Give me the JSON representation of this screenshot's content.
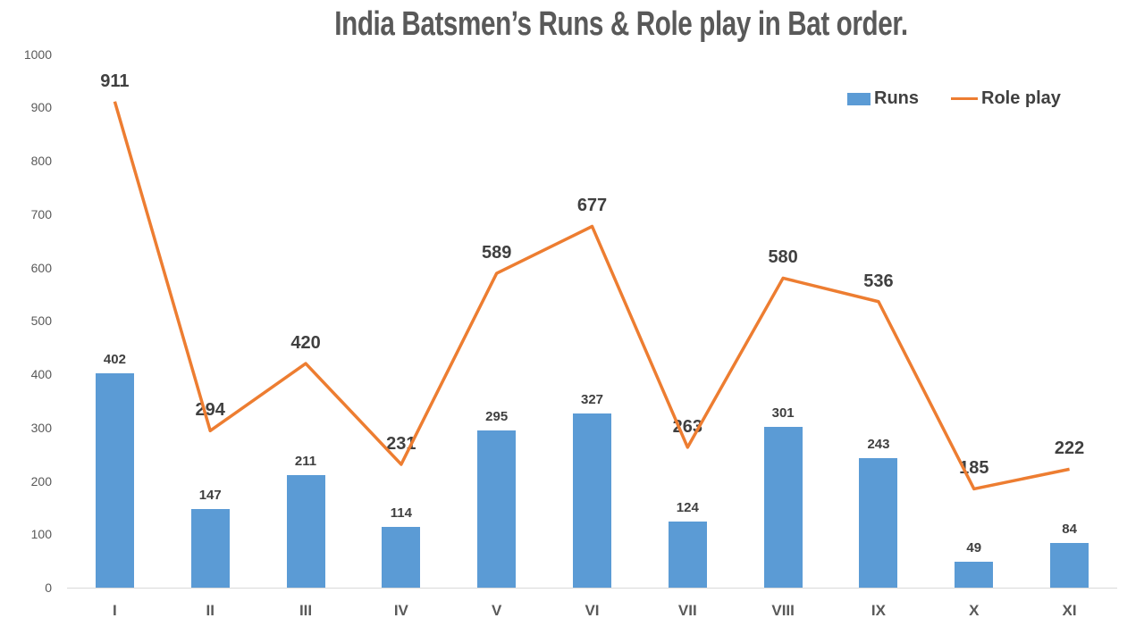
{
  "title": "India Batsmen’s Runs & Role play in Bat order.",
  "colors": {
    "bar": "#5B9BD5",
    "line": "#ED7D31",
    "data_label": "#404040",
    "axis_text": "#595959",
    "title_text": "#595959",
    "axis_line": "#D9D9D9"
  },
  "chart_data": {
    "type": "bar",
    "subtype": "bar-and-line-combo",
    "title": "India Batsmen’s Runs & Role play in Bat order.",
    "categories": [
      "I",
      "II",
      "III",
      "IV",
      "V",
      "VI",
      "VII",
      "VIII",
      "IX",
      "X",
      "XI"
    ],
    "series": [
      {
        "name": "Runs",
        "type": "bar",
        "color": "#5B9BD5",
        "values": [
          402,
          147,
          211,
          114,
          295,
          327,
          124,
          301,
          243,
          49,
          84
        ]
      },
      {
        "name": "Role play",
        "type": "line",
        "color": "#ED7D31",
        "values": [
          911,
          294,
          420,
          231,
          589,
          677,
          263,
          580,
          536,
          185,
          222
        ]
      }
    ],
    "xlabel": "",
    "ylabel": "",
    "y_axis": {
      "min": 0,
      "max": 1000,
      "step": 100,
      "ticks": [
        0,
        100,
        200,
        300,
        400,
        500,
        600,
        700,
        800,
        900,
        1000
      ]
    },
    "grid": false,
    "data_labels": true,
    "legend_position": "top-right"
  }
}
